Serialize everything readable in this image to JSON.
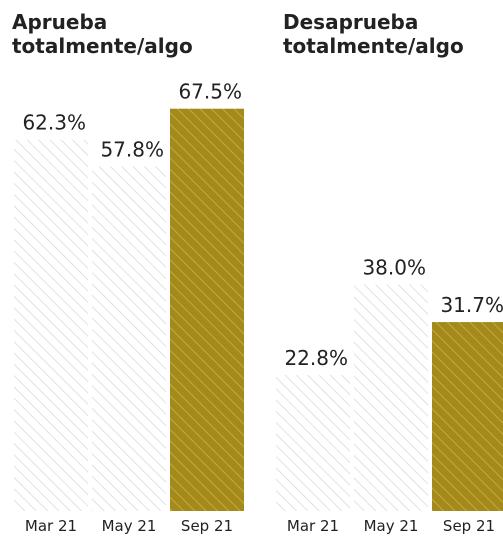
{
  "colors": {
    "highlight_fill": "#A48A1C",
    "highlight_stripe": "#C6AA32",
    "light_fill": "#FFFFFF",
    "light_stripe": "#CFCFCF",
    "label_text": "#222222"
  },
  "chart_data": [
    {
      "type": "bar",
      "title_lines": [
        "Aprueba",
        "totalmente/algo"
      ],
      "categories": [
        "Mar 21",
        "May 21",
        "Sep 21"
      ],
      "values": [
        62.3,
        57.8,
        67.5
      ],
      "value_labels": [
        "62.3%",
        "57.8%",
        "67.5%"
      ],
      "highlight": [
        false,
        false,
        true
      ],
      "ylim": [
        0,
        75
      ],
      "grid": false
    },
    {
      "type": "bar",
      "title_lines": [
        "Desaprueba",
        "totalmente/algo"
      ],
      "categories": [
        "Mar 21",
        "May 21",
        "Sep 21"
      ],
      "values": [
        22.8,
        38.0,
        31.7
      ],
      "value_labels": [
        "22.8%",
        "38.0%",
        "31.7%"
      ],
      "highlight": [
        false,
        false,
        true
      ],
      "ylim": [
        0,
        75
      ],
      "grid": false
    }
  ]
}
